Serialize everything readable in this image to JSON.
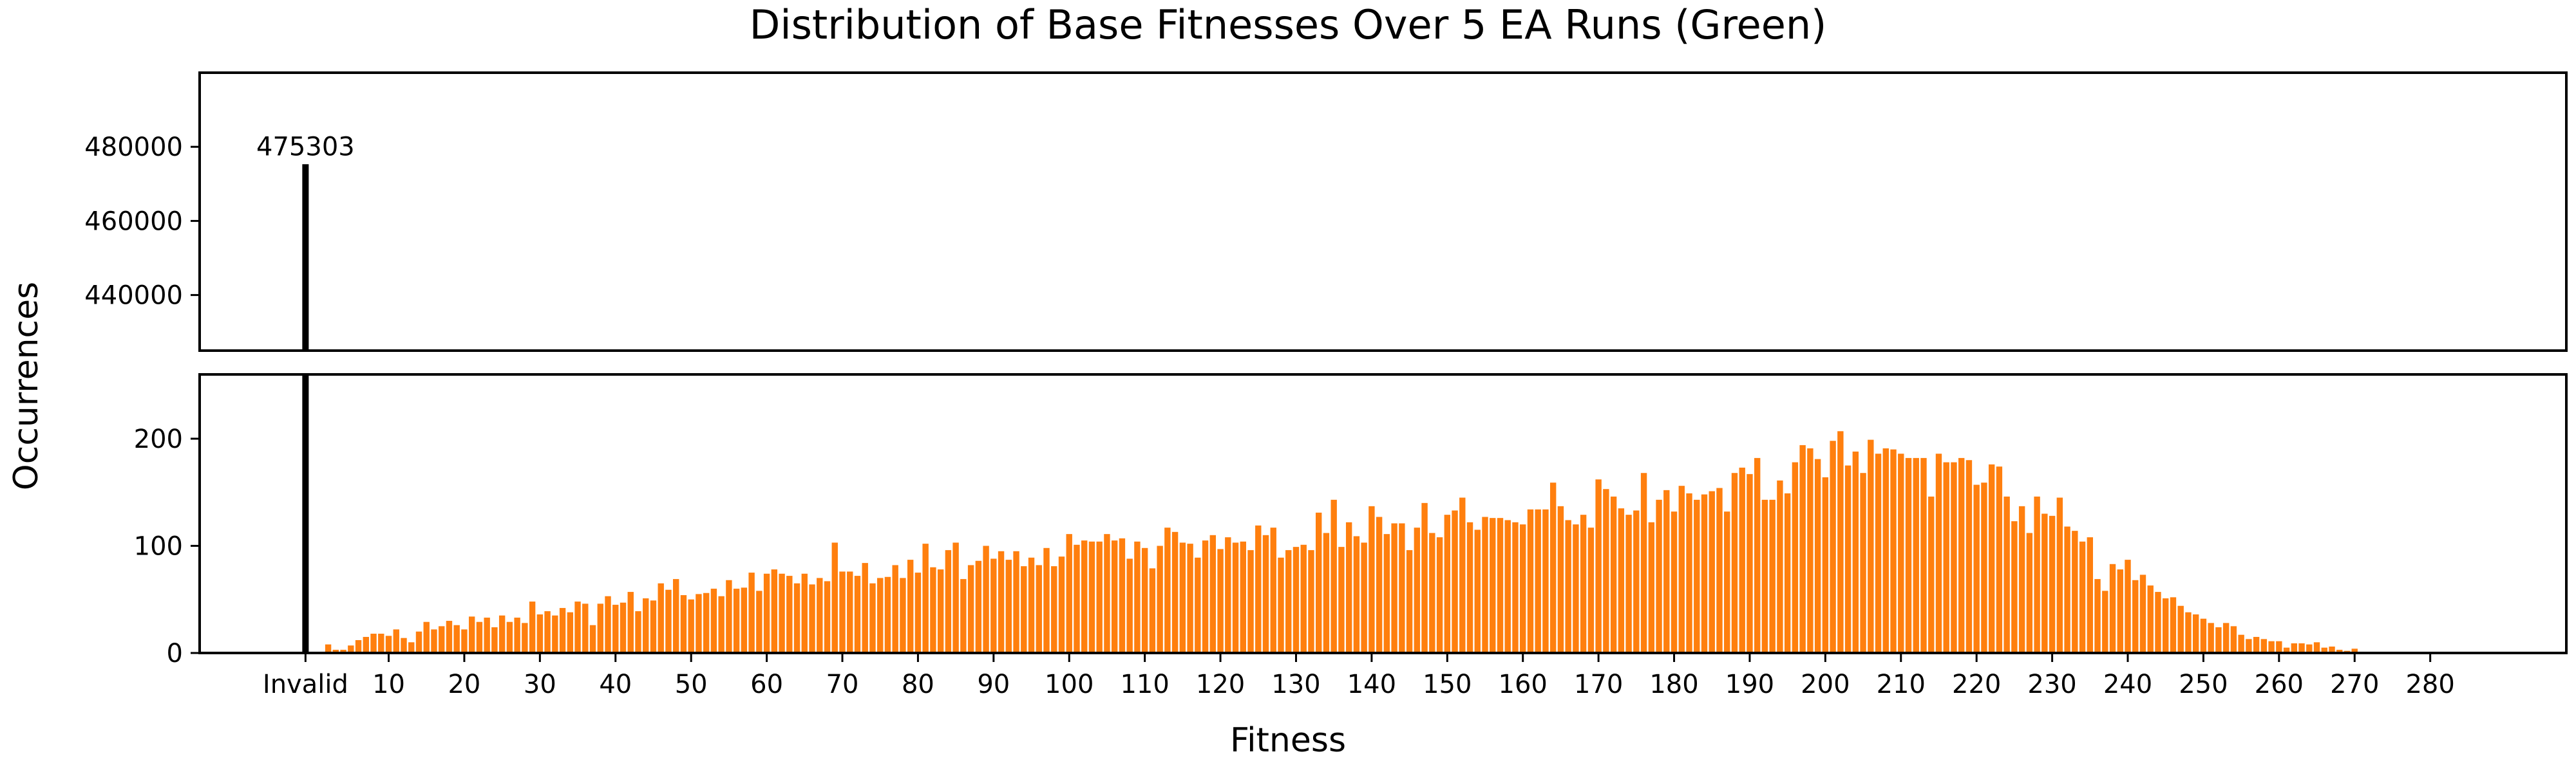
{
  "chart_data": {
    "type": "bar",
    "title": "Distribution of Base Fitnesses Over 5 EA Runs (Green)",
    "xlabel": "Fitness",
    "ylabel": "Occurrences",
    "broken_y_axis": true,
    "top_panel_ylim": [
      425000,
      500000
    ],
    "bottom_panel_ylim": [
      0,
      260
    ],
    "top_panel_yticks": [
      440000,
      460000,
      480000
    ],
    "bottom_panel_yticks": [
      0,
      100,
      200
    ],
    "xlim": [
      -14,
      299
    ],
    "xtick_values": [
      0,
      11,
      21,
      31,
      41,
      51,
      61,
      71,
      81,
      91,
      101,
      111,
      121,
      131,
      141,
      151,
      161,
      171,
      181,
      191,
      201,
      211,
      221,
      231,
      241,
      251,
      261,
      271,
      281
    ],
    "xtick_labels": [
      "Invalid",
      "10",
      "20",
      "30",
      "40",
      "50",
      "60",
      "70",
      "80",
      "90",
      "100",
      "110",
      "120",
      "130",
      "140",
      "150",
      "160",
      "170",
      "180",
      "190",
      "200",
      "210",
      "220",
      "230",
      "240",
      "250",
      "260",
      "270",
      "280"
    ],
    "grid": false,
    "invalid_bar": {
      "label": "Invalid",
      "x": 0,
      "value": 475303,
      "color": "#000000",
      "data_label": "475303"
    },
    "series_color": "#ff7f0e",
    "fitness_start": 3,
    "values": [
      8,
      3,
      3,
      7,
      12,
      15,
      18,
      18,
      16,
      22,
      14,
      10,
      20,
      29,
      22,
      25,
      30,
      26,
      22,
      34,
      29,
      33,
      24,
      35,
      29,
      33,
      28,
      48,
      36,
      39,
      35,
      42,
      38,
      48,
      46,
      26,
      46,
      53,
      45,
      47,
      57,
      39,
      51,
      49,
      65,
      59,
      69,
      54,
      50,
      55,
      56,
      60,
      53,
      68,
      60,
      61,
      75,
      58,
      74,
      78,
      74,
      72,
      65,
      74,
      64,
      70,
      67,
      103,
      76,
      76,
      72,
      84,
      65,
      70,
      71,
      82,
      70,
      87,
      75,
      102,
      80,
      78,
      96,
      103,
      69,
      82,
      86,
      100,
      88,
      95,
      87,
      95,
      81,
      89,
      82,
      98,
      81,
      90,
      111,
      101,
      105,
      104,
      104,
      111,
      105,
      107,
      88,
      104,
      98,
      79,
      100,
      117,
      113,
      103,
      102,
      89,
      105,
      110,
      97,
      108,
      103,
      104,
      96,
      119,
      110,
      117,
      89,
      96,
      99,
      101,
      96,
      131,
      112,
      143,
      99,
      122,
      109,
      103,
      137,
      127,
      111,
      121,
      121,
      96,
      117,
      140,
      112,
      108,
      129,
      133,
      145,
      122,
      115,
      127,
      126,
      126,
      124,
      122,
      120,
      134,
      134,
      134,
      159,
      137,
      124,
      120,
      129,
      117,
      162,
      153,
      146,
      135,
      129,
      133,
      168,
      122,
      143,
      152,
      132,
      156,
      149,
      143,
      148,
      151,
      154,
      132,
      168,
      173,
      167,
      182,
      143,
      143,
      161,
      149,
      178,
      194,
      191,
      181,
      164,
      198,
      207,
      175,
      188,
      168,
      199,
      186,
      191,
      190,
      186,
      182,
      182,
      182,
      146,
      186,
      178,
      178,
      182,
      180,
      157,
      159,
      176,
      174,
      146,
      123,
      137,
      112,
      146,
      130,
      128,
      145,
      118,
      114,
      104,
      108,
      69,
      58,
      83,
      78,
      87,
      68,
      73,
      63,
      57,
      51,
      52,
      44,
      38,
      36,
      32,
      28,
      24,
      28,
      25,
      17,
      13,
      15,
      13,
      11,
      11,
      5,
      9,
      9,
      8,
      10,
      5,
      6,
      3,
      2,
      4
    ]
  }
}
